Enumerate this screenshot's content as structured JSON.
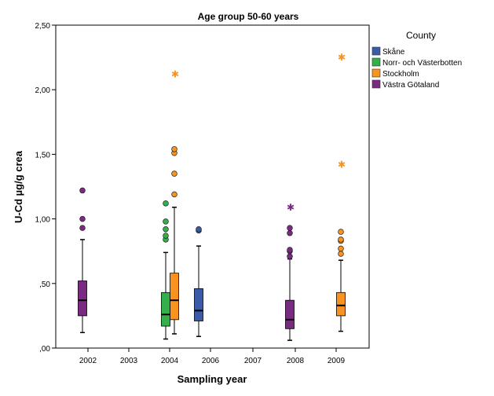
{
  "chart_data": {
    "type": "boxplot",
    "title": "Age group 50-60 years",
    "xlabel": "Sampling year",
    "ylabel": "U-Cd µg/g crea",
    "categories": [
      "2002",
      "2003",
      "2004",
      "2006",
      "2007",
      "2008",
      "2009"
    ],
    "ylim": [
      0,
      2.5
    ],
    "yticks": [
      0,
      0.5,
      1.0,
      1.5,
      2.0,
      2.5
    ],
    "ytick_labels": [
      ",00",
      ",50",
      "1,00",
      "1,50",
      "2,00",
      "2,50"
    ],
    "grid": false,
    "legend": {
      "title": "County",
      "position": "right",
      "entries": [
        {
          "label": "Skåne",
          "color": "#3a5ca8"
        },
        {
          "label": "Norr- och Västerbotten",
          "color": "#33b04a"
        },
        {
          "label": "Stockholm",
          "color": "#f7931e"
        },
        {
          "label": "Västra Götaland",
          "color": "#7b2a82"
        }
      ]
    },
    "boxes": [
      {
        "category": "2002",
        "series": "Västra Götaland",
        "min": 0.12,
        "q1": 0.25,
        "median": 0.37,
        "q3": 0.52,
        "max": 0.84,
        "outliers": [
          0.93,
          1.0,
          1.22
        ],
        "extremes": []
      },
      {
        "category": "2004",
        "series": "Norr- och Västerbotten",
        "min": 0.07,
        "q1": 0.17,
        "median": 0.26,
        "q3": 0.43,
        "max": 0.74,
        "outliers": [
          0.84,
          0.87,
          0.92,
          0.98,
          1.12
        ],
        "extremes": []
      },
      {
        "category": "2004",
        "series": "Stockholm",
        "min": 0.11,
        "q1": 0.22,
        "median": 0.37,
        "q3": 0.58,
        "max": 1.09,
        "outliers": [
          1.19,
          1.35,
          1.51,
          1.54
        ],
        "extremes": [
          2.12
        ]
      },
      {
        "category": "2006",
        "series": "Skåne",
        "min": 0.09,
        "q1": 0.21,
        "median": 0.29,
        "q3": 0.46,
        "max": 0.79,
        "outliers": [
          0.91,
          0.92
        ],
        "extremes": []
      },
      {
        "category": "2008",
        "series": "Västra Götaland",
        "min": 0.06,
        "q1": 0.15,
        "median": 0.22,
        "q3": 0.37,
        "max": 0.69,
        "outliers": [
          0.71,
          0.75,
          0.76,
          0.89,
          0.93
        ],
        "extremes": [
          1.09
        ]
      },
      {
        "category": "2009",
        "series": "Stockholm",
        "min": 0.13,
        "q1": 0.25,
        "median": 0.33,
        "q3": 0.43,
        "max": 0.68,
        "outliers": [
          0.73,
          0.77,
          0.83,
          0.84,
          0.9
        ],
        "extremes": [
          1.42,
          2.25
        ]
      }
    ]
  }
}
